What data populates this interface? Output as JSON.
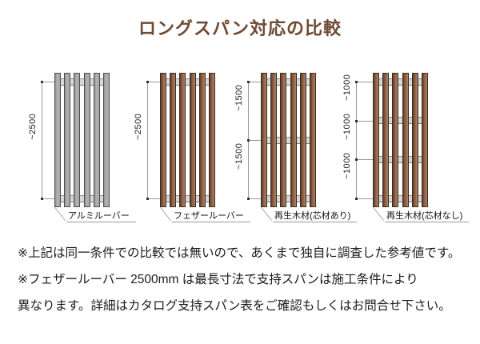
{
  "title": "ロングスパン対応の比較",
  "colors": {
    "title": "#6f4a33",
    "aluminum_slat": "#b3b3b3",
    "wood_slat": "#8f6147",
    "rail": "#d9d9d9"
  },
  "panels": [
    {
      "id": "aluminum-louver",
      "label": "アルミルーバー",
      "material": "aluminum",
      "slat_count": 6,
      "rail_count": 2,
      "span_labels": [
        "~2500"
      ]
    },
    {
      "id": "feather-louver",
      "label": "フェザールーバー",
      "material": "wood",
      "slat_count": 6,
      "rail_count": 2,
      "span_labels": [
        "~2500"
      ]
    },
    {
      "id": "recycled-wood-with-core",
      "label": "再生木材(芯材あり)",
      "material": "wood",
      "slat_count": 6,
      "rail_count": 3,
      "span_labels": [
        "~1500",
        "~1500"
      ]
    },
    {
      "id": "recycled-wood-without-core",
      "label": "再生木材(芯材なし)",
      "material": "wood",
      "slat_count": 6,
      "rail_count": 4,
      "span_labels": [
        "~1000",
        "~1000",
        "~1000"
      ]
    }
  ],
  "notes": [
    "※上記は同一条件での比較では無いので、あくまで独自に調査した参考値です。",
    "※フェザールーバー 2500mm は最長寸法で支持スパンは施工条件により",
    "異なります。詳細はカタログ支持スパン表をご確認もしくはお問合せ下さい。"
  ]
}
